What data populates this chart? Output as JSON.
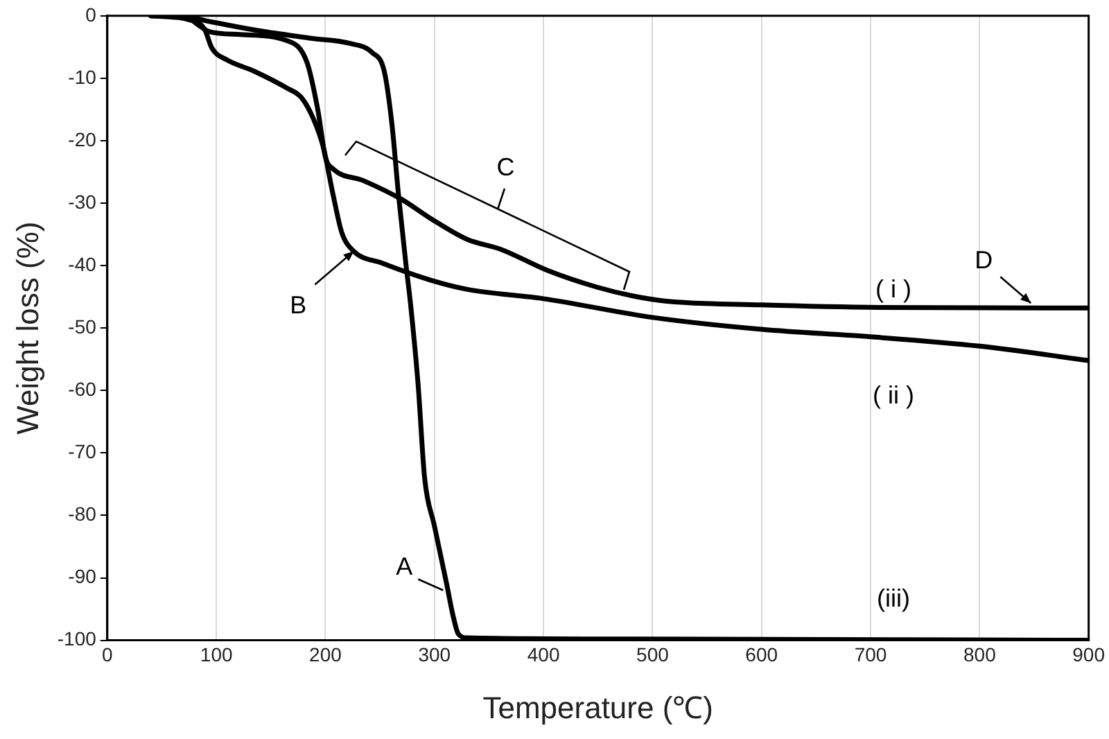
{
  "chart_data": {
    "type": "line",
    "xlabel": "Temperature (℃)",
    "ylabel": "Weight loss (%)",
    "xlim": [
      0,
      900
    ],
    "xticks": [
      0,
      100,
      200,
      300,
      400,
      500,
      600,
      700,
      800,
      900
    ],
    "ylim": [
      -100,
      0
    ],
    "yticks": [
      -100,
      -90,
      -80,
      -70,
      -60,
      -50,
      -40,
      -30,
      -20,
      -10,
      0
    ],
    "grid": "x",
    "marker": "none",
    "line_style": "solid",
    "legend": false,
    "series": [
      {
        "color": "#000000",
        "x": [
          40,
          70,
          83,
          93,
          122,
          165,
          183,
          193,
          200,
          207,
          235,
          270,
          296,
          330,
          361,
          404,
          448,
          483,
          513,
          600,
          709,
          900
        ],
        "values": [
          0,
          0,
          -1.4,
          -2.5,
          -3,
          -4,
          -7.4,
          -15,
          -22.6,
          -24.5,
          -26.4,
          -29.4,
          -32.4,
          -35.8,
          -37.4,
          -40.8,
          -43.4,
          -44.9,
          -45.7,
          -46.3,
          -46.7,
          -46.8
        ]
      },
      {
        "color": "#000000",
        "x": [
          40,
          74,
          89,
          96,
          109,
          135,
          165,
          178,
          189,
          198,
          207,
          215,
          226,
          252,
          296,
          330,
          400,
          500,
          600,
          700,
          800,
          900
        ],
        "values": [
          0,
          -0.6,
          -2.1,
          -5.2,
          -7,
          -8.9,
          -11.6,
          -13.1,
          -16.5,
          -21,
          -28.6,
          -34.7,
          -37.7,
          -39.6,
          -42.3,
          -43.8,
          -45.3,
          -48.3,
          -50.2,
          -51.4,
          -52.9,
          -55.2
        ]
      },
      {
        "color": "#000000",
        "x": [
          40,
          65,
          96,
          143,
          187,
          222,
          243,
          254,
          261,
          267,
          274,
          278,
          285,
          291,
          300,
          311,
          317,
          322,
          330,
          480,
          900
        ],
        "values": [
          0,
          0,
          -1,
          -2.5,
          -3.6,
          -4.4,
          -5.9,
          -8.9,
          -17.3,
          -28.6,
          -40,
          -46,
          -59,
          -74,
          -81.7,
          -90.8,
          -96,
          -99,
          -99.6,
          -99.8,
          -100
        ]
      }
    ],
    "annotations": [
      {
        "text": "A",
        "x": 308,
        "y": -92
      },
      {
        "text": "B",
        "x": 226,
        "y": -37.7
      },
      {
        "text": "C",
        "x": 350,
        "y": -36
      },
      {
        "text": "D",
        "x": 847,
        "y": -46
      },
      "( i )",
      "( ii )",
      "(iii)"
    ]
  }
}
